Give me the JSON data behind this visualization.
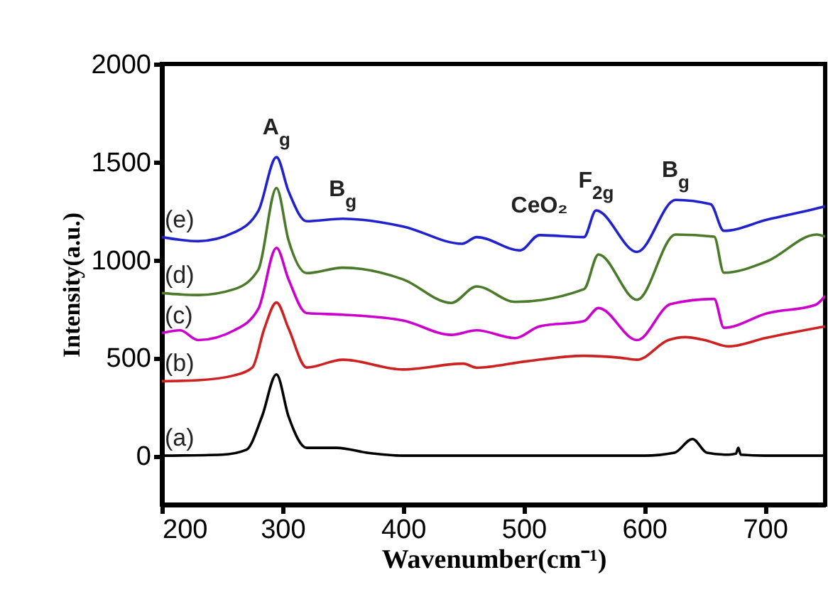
{
  "chart_data": {
    "type": "line",
    "xlabel": "Wavenumber(cm⁻¹)",
    "ylabel": "Intensity(a.u.)",
    "xlim": [
      200,
      750
    ],
    "ylim": [
      -250,
      2000
    ],
    "xticks": [
      200,
      300,
      400,
      500,
      600,
      700
    ],
    "yticks": [
      0,
      500,
      1000,
      1500,
      2000
    ],
    "grid": false,
    "series": [
      {
        "name": "(a)",
        "color": "#000000",
        "x": [
          200,
          250,
          270,
          283,
          295,
          305,
          320,
          345,
          370,
          400,
          500,
          600,
          625,
          640,
          652,
          670,
          676,
          678,
          680,
          700,
          750
        ],
        "values": [
          0,
          5,
          30,
          200,
          415,
          200,
          40,
          40,
          15,
          0,
          0,
          0,
          15,
          85,
          15,
          5,
          10,
          40,
          5,
          0,
          0
        ]
      },
      {
        "name": "(b)",
        "color": "#cc2222",
        "x": [
          200,
          230,
          260,
          275,
          285,
          295,
          305,
          320,
          350,
          400,
          450,
          461,
          500,
          550,
          580,
          594,
          620,
          634,
          650,
          670,
          700,
          750
        ],
        "values": [
          380,
          385,
          410,
          450,
          650,
          782,
          650,
          450,
          490,
          440,
          470,
          449,
          480,
          510,
          500,
          490,
          590,
          605,
          590,
          558,
          600,
          660
        ]
      },
      {
        "name": "(c)",
        "color": "#cc00cc",
        "x": [
          200,
          215,
          230,
          260,
          280,
          295,
          305,
          320,
          350,
          400,
          440,
          461,
          493,
          513,
          550,
          562,
          594,
          622,
          658,
          666,
          702,
          742,
          750
        ],
        "values": [
          626,
          640,
          590,
          640,
          750,
          1061,
          900,
          728,
          720,
          690,
          617,
          640,
          600,
          660,
          687,
          754,
          590,
          774,
          800,
          653,
          727,
          770,
          816
        ]
      },
      {
        "name": "(d)",
        "color": "#4a7a2a",
        "x": [
          200,
          230,
          260,
          280,
          295,
          305,
          320,
          350,
          400,
          440,
          461,
          493,
          550,
          562,
          594,
          626,
          658,
          666,
          702,
          743,
          750
        ],
        "values": [
          830,
          820,
          850,
          950,
          1367,
          1100,
          932,
          960,
          900,
          780,
          864,
          785,
          850,
          1027,
          796,
          1129,
          1118,
          934,
          993,
          1129,
          1118
        ]
      },
      {
        "name": "(e)",
        "color": "#2222cc",
        "x": [
          200,
          230,
          260,
          280,
          295,
          305,
          320,
          350,
          400,
          449,
          461,
          497,
          513,
          550,
          560,
          594,
          626,
          655,
          666,
          702,
          743,
          750
        ],
        "values": [
          1116,
          1095,
          1140,
          1250,
          1524,
          1350,
          1197,
          1210,
          1170,
          1082,
          1116,
          1048,
          1126,
          1116,
          1252,
          1040,
          1306,
          1284,
          1148,
          1205,
          1262,
          1273
        ]
      }
    ],
    "annotations": [
      {
        "text": "A$_{g}$",
        "x": 295,
        "y": 1524
      },
      {
        "text": "B$_{g}$",
        "x": 350,
        "y": 1210
      },
      {
        "text": "CeO₂",
        "x": 513,
        "y": 1126
      },
      {
        "text": "F$_{2g}$",
        "x": 560,
        "y": 1252
      },
      {
        "text": "B$_{g}$",
        "x": 626,
        "y": 1306
      }
    ]
  }
}
